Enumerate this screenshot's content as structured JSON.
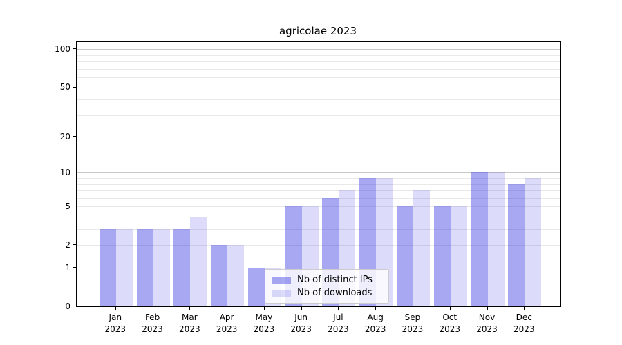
{
  "chart_data": {
    "type": "bar",
    "title": "agricolae 2023",
    "x_tick_months": [
      "Jan",
      "Feb",
      "Mar",
      "Apr",
      "May",
      "Jun",
      "Jul",
      "Aug",
      "Sep",
      "Oct",
      "Nov",
      "Dec"
    ],
    "x_tick_year": "2023",
    "series": [
      {
        "name": "Nb of distinct IPs",
        "color": "rgba(62,62,226,0.45)",
        "values": [
          3,
          3,
          3,
          2,
          1,
          5,
          6,
          9,
          5,
          5,
          10,
          8
        ]
      },
      {
        "name": "Nb of downloads",
        "color": "rgba(62,62,226,0.18)",
        "values": [
          3,
          3,
          4,
          2,
          1,
          5,
          7,
          9,
          7,
          5,
          10,
          9
        ]
      }
    ],
    "y_scale": "log1p",
    "ylim": [
      0,
      114
    ],
    "y_tick_values": [
      100,
      50,
      20,
      10,
      5,
      2,
      1,
      0
    ],
    "gridlines_minor": [
      2,
      3,
      4,
      5,
      6,
      7,
      8,
      9,
      20,
      30,
      40,
      50,
      60,
      70,
      80,
      90
    ],
    "gridlines_major": [
      1,
      10,
      100
    ],
    "grid_minor_color": "#e8e8e8",
    "grid_major_color": "#c8c8c8",
    "legend_position": "lower-center",
    "grid": "on"
  }
}
